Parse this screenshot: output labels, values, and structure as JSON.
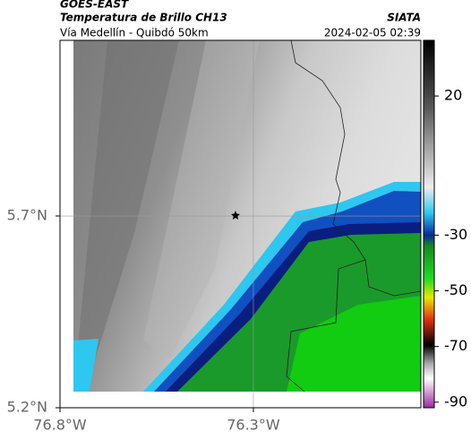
{
  "header": {
    "title": "GOES-EAST",
    "subtitle": "Temperatura de Brillo CH13",
    "route": "Vía Medellín - Quibdó 50km",
    "source": "SIATA",
    "datetime": "2024-02-05 02:39"
  },
  "map": {
    "xlim": [
      -76.8,
      -75.867
    ],
    "ylim": [
      5.2,
      6.158
    ],
    "xticks": [
      {
        "value": -76.8,
        "label": "76.8°W"
      },
      {
        "value": -76.3,
        "label": "76.3°W"
      }
    ],
    "yticks": [
      {
        "value": 5.2,
        "label": "5.2°N"
      },
      {
        "value": 5.7,
        "label": "5.7°N"
      }
    ]
  },
  "colorbar": {
    "lim": [
      -92,
      40
    ],
    "ticks": [
      20,
      -30,
      -50,
      -70,
      -90
    ]
  }
}
